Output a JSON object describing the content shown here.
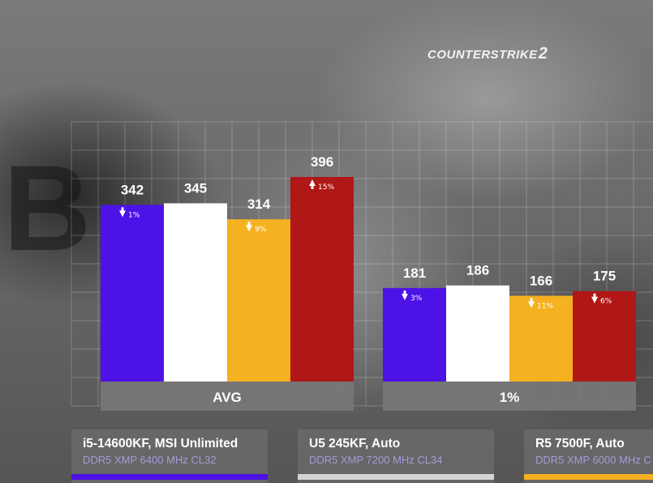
{
  "brand": {
    "logo_text": "COUNTER",
    "logo_strike": "STRIKE",
    "logo_num": "2"
  },
  "background_letter": "B",
  "chart_data": {
    "type": "bar",
    "categories": [
      "AVG",
      "1%"
    ],
    "series": [
      {
        "name": "i5-14600KF, MSI Unlimited",
        "color": "#4d12e6",
        "values": [
          342,
          181
        ],
        "diffs": [
          {
            "dir": "down",
            "text": "1%"
          },
          {
            "dir": "down",
            "text": "3%"
          }
        ]
      },
      {
        "name": "U5 245KF, Auto",
        "color": "#ffffff",
        "values": [
          345,
          186
        ],
        "diffs": [
          null,
          null
        ]
      },
      {
        "name": "R5 7500F, Auto",
        "color": "#f5b120",
        "values": [
          314,
          166
        ],
        "diffs": [
          {
            "dir": "down",
            "text": "9%"
          },
          {
            "dir": "down",
            "text": "11%"
          }
        ]
      },
      {
        "name": "",
        "color": "#b01717",
        "values": [
          396,
          175
        ],
        "diffs": [
          {
            "dir": "up",
            "text": "15%"
          },
          {
            "dir": "down",
            "text": "6%"
          }
        ]
      }
    ],
    "ylim": [
      0,
      396
    ],
    "grid": true
  },
  "legend": [
    {
      "name": "i5-14600KF, MSI Unlimited",
      "sub": "DDR5 XMP 6400 MHz CL32",
      "color": "#4d12e6"
    },
    {
      "name": "U5 245KF, Auto",
      "sub": "DDR5 XMP 7200 MHz CL34",
      "color": "#d4d4d4"
    },
    {
      "name": "R5 7500F, Auto",
      "sub": "DDR5 XMP 6000 MHz C",
      "color": "#f5b120"
    }
  ]
}
